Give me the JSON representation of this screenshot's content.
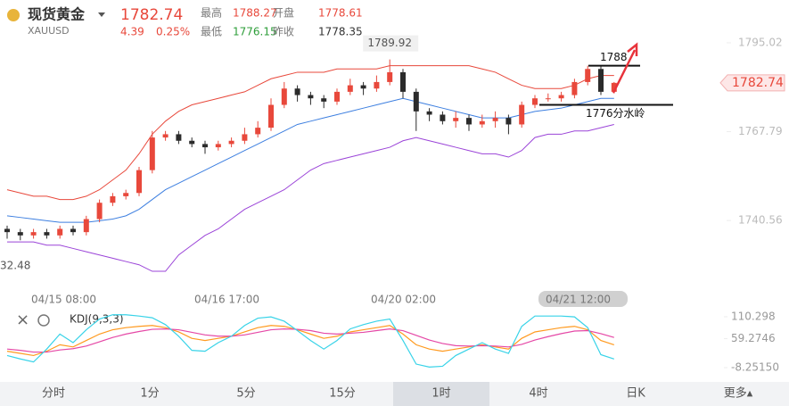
{
  "header": {
    "name": "现货黄金",
    "symbol": "XAUUSD",
    "price": 1782.74,
    "change": 4.39,
    "change_pct": "0.25%",
    "stats": [
      {
        "label": "最高",
        "value": 1788.27
      },
      {
        "label": "开盘",
        "value": 1778.61
      },
      {
        "label": "最低",
        "value": 1776.15
      },
      {
        "label": "昨收",
        "value": 1778.35
      }
    ]
  },
  "chart_data": [
    {
      "type": "candlestick",
      "x_labels": [
        "04/15 08:00",
        "04/16 17:00",
        "04/20 02:00",
        "04/21 12:00"
      ],
      "candles": [
        [
          1738,
          1739,
          1735,
          1737
        ],
        [
          1737,
          1738,
          1734.5,
          1736
        ],
        [
          1736,
          1738,
          1735,
          1737
        ],
        [
          1737,
          1738,
          1735,
          1736
        ],
        [
          1736,
          1739,
          1735,
          1738
        ],
        [
          1738,
          1739,
          1736,
          1737
        ],
        [
          1737,
          1742,
          1736,
          1741
        ],
        [
          1741,
          1747,
          1740,
          1746
        ],
        [
          1746,
          1749,
          1745,
          1748
        ],
        [
          1748,
          1750,
          1747,
          1749
        ],
        [
          1749,
          1757,
          1748,
          1756
        ],
        [
          1756,
          1768,
          1755,
          1766
        ],
        [
          1766,
          1768,
          1765,
          1767
        ],
        [
          1767,
          1768,
          1764,
          1765
        ],
        [
          1765,
          1766,
          1763,
          1764
        ],
        [
          1764,
          1765,
          1761,
          1763
        ],
        [
          1763,
          1765,
          1762,
          1764
        ],
        [
          1764,
          1766,
          1763,
          1765
        ],
        [
          1765,
          1769,
          1764,
          1767
        ],
        [
          1767,
          1771,
          1766,
          1769
        ],
        [
          1769,
          1778,
          1768,
          1776
        ],
        [
          1776,
          1783,
          1775,
          1781
        ],
        [
          1781,
          1782,
          1777,
          1779
        ],
        [
          1779,
          1780,
          1776,
          1778
        ],
        [
          1778,
          1779,
          1775,
          1777
        ],
        [
          1777,
          1781,
          1776,
          1780
        ],
        [
          1780,
          1784,
          1779,
          1782
        ],
        [
          1782,
          1783,
          1779,
          1781
        ],
        [
          1781,
          1785,
          1780,
          1783
        ],
        [
          1783,
          1789.92,
          1782,
          1786
        ],
        [
          1786,
          1787,
          1778,
          1780
        ],
        [
          1780,
          1781,
          1768,
          1774
        ],
        [
          1774,
          1775,
          1771,
          1773
        ],
        [
          1773,
          1774,
          1770,
          1771
        ],
        [
          1771,
          1774,
          1769,
          1772
        ],
        [
          1772,
          1773,
          1768,
          1770
        ],
        [
          1770,
          1773,
          1769,
          1771
        ],
        [
          1771,
          1774,
          1769,
          1772
        ],
        [
          1772,
          1773,
          1767,
          1770
        ],
        [
          1770,
          1777,
          1769,
          1776
        ],
        [
          1776,
          1779,
          1775,
          1778
        ],
        [
          1778,
          1779.5,
          1777,
          1778
        ],
        [
          1778,
          1780,
          1777,
          1779
        ],
        [
          1779,
          1784,
          1778,
          1783
        ],
        [
          1783,
          1788,
          1782,
          1787
        ],
        [
          1787,
          1788,
          1779,
          1780
        ],
        [
          1780,
          1783,
          1779.5,
          1782.74
        ]
      ],
      "up_color": "#e8483b",
      "down_color": "#2b2b2b",
      "peak_index": 29,
      "series": [
        {
          "color": "#e8483b",
          "values": [
            1750,
            1749,
            1748,
            1748,
            1747,
            1747,
            1748,
            1750,
            1753,
            1756,
            1761,
            1767,
            1771,
            1774,
            1776,
            1777,
            1778,
            1779,
            1780,
            1782,
            1784,
            1785,
            1786,
            1786,
            1786,
            1787,
            1787,
            1787,
            1787,
            1788,
            1788,
            1788,
            1788,
            1788,
            1788,
            1788,
            1787,
            1786,
            1784,
            1782,
            1781,
            1781,
            1781,
            1782,
            1784,
            1785,
            1785
          ]
        },
        {
          "color": "#3d7fe0",
          "values": [
            1742,
            1741.5,
            1741,
            1740.5,
            1740,
            1740,
            1740,
            1740.5,
            1741,
            1742,
            1744,
            1747,
            1750,
            1752,
            1754,
            1756,
            1758,
            1760,
            1762,
            1764,
            1766,
            1768,
            1770,
            1771,
            1772,
            1773,
            1774,
            1775,
            1776,
            1777,
            1778,
            1777,
            1776,
            1775,
            1774,
            1773,
            1772,
            1772,
            1772,
            1773,
            1774,
            1774.5,
            1775,
            1776,
            1777,
            1778,
            1778
          ]
        },
        {
          "color": "#9b44d8",
          "values": [
            1734,
            1734,
            1734,
            1733,
            1733,
            1732,
            1731,
            1730,
            1729,
            1728,
            1727,
            1725,
            1725,
            1730,
            1733,
            1736,
            1738,
            1741,
            1744,
            1746,
            1748,
            1750,
            1753,
            1756,
            1758,
            1759,
            1760,
            1761,
            1762,
            1763,
            1765,
            1766,
            1765,
            1764,
            1763,
            1762,
            1761,
            1761,
            1760,
            1762,
            1766,
            1767,
            1767,
            1768,
            1768,
            1769,
            1770
          ]
        }
      ],
      "ylim": [
        1722,
        1805.4
      ],
      "yticks": [
        1740.56,
        1767.79,
        1795.02
      ],
      "low_label": "32.48",
      "levels": [
        {
          "value": 1788
        },
        {
          "value": 1776,
          "label": "1776分水岭"
        }
      ]
    },
    {
      "type": "line",
      "title": "KDJ(9,3,3)",
      "series": [
        {
          "color": "#ff9a1f",
          "values": [
            30,
            25,
            20,
            30,
            45,
            40,
            55,
            70,
            80,
            85,
            88,
            90,
            85,
            75,
            60,
            55,
            60,
            65,
            75,
            85,
            90,
            88,
            80,
            70,
            60,
            65,
            75,
            80,
            85,
            90,
            70,
            45,
            35,
            30,
            35,
            40,
            45,
            40,
            35,
            60,
            75,
            80,
            85,
            88,
            80,
            55,
            45
          ]
        },
        {
          "color": "#e548a6",
          "values": [
            35,
            32,
            28,
            28,
            33,
            36,
            42,
            52,
            62,
            70,
            76,
            81,
            82,
            80,
            74,
            68,
            65,
            65,
            68,
            74,
            80,
            82,
            81,
            78,
            72,
            70,
            72,
            74,
            78,
            82,
            78,
            67,
            56,
            48,
            43,
            42,
            43,
            42,
            40,
            46,
            56,
            64,
            71,
            77,
            78,
            71,
            62
          ]
        },
        {
          "color": "#38d3e8",
          "values": [
            20,
            12,
            5,
            35,
            70,
            50,
            80,
            105,
            115,
            115,
            112,
            108,
            92,
            65,
            32,
            30,
            50,
            65,
            90,
            107,
            110,
            100,
            78,
            55,
            35,
            55,
            82,
            92,
            100,
            105,
            55,
            0,
            -7,
            -5,
            20,
            35,
            50,
            35,
            25,
            88,
            112,
            112,
            112,
            110,
            85,
            22,
            12
          ]
        }
      ],
      "ylim": [
        -24.9,
        131.1
      ],
      "yticks": [
        {
          "value": -8.2515,
          "label": "-8.25150"
        },
        59.2746,
        110.298
      ]
    }
  ],
  "tabs": [
    "分时",
    "1分",
    "5分",
    "15分",
    "1时",
    "4时",
    "日K",
    "更多▴"
  ],
  "active_tab": 4
}
